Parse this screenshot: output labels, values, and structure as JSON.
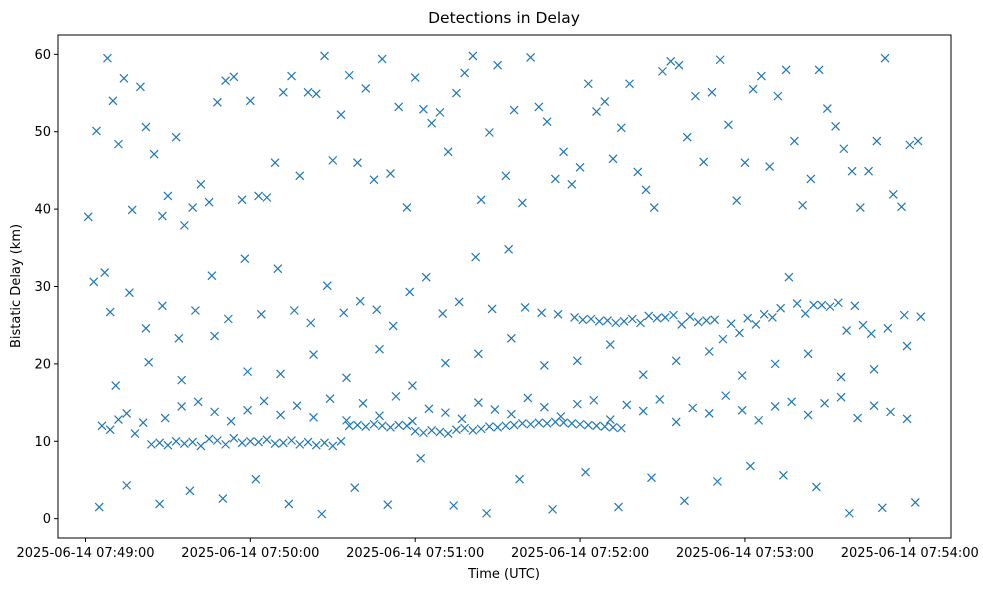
{
  "chart_data": {
    "type": "scatter",
    "title": "Detections in Delay",
    "xlabel": "Time (UTC)",
    "ylabel": "Bistatic Delay (km)",
    "x_axis": "time",
    "xlim": [
      "2025-06-14 07:48:50",
      "2025-06-14 07:54:15"
    ],
    "ylim": [
      -2.5,
      62.5
    ],
    "x_ticks": [
      "2025-06-14 07:49:00",
      "2025-06-14 07:50:00",
      "2025-06-14 07:51:00",
      "2025-06-14 07:52:00",
      "2025-06-14 07:53:00",
      "2025-06-14 07:54:00"
    ],
    "y_ticks": [
      0,
      10,
      20,
      30,
      40,
      50,
      60
    ],
    "grid": false,
    "marker": "x",
    "marker_color": "#1f77b4",
    "series": [
      {
        "x": [
          "2025-06-14 07:49:01",
          "2025-06-14 07:49:04",
          "2025-06-14 07:49:07",
          "2025-06-14 07:49:08",
          "2025-06-14 07:49:10",
          "2025-06-14 07:49:12",
          "2025-06-14 07:49:14",
          "2025-06-14 07:49:17",
          "2025-06-14 07:49:20",
          "2025-06-14 07:49:22",
          "2025-06-14 07:49:25",
          "2025-06-14 07:49:28",
          "2025-06-14 07:49:30",
          "2025-06-14 07:49:33",
          "2025-06-14 07:49:36",
          "2025-06-14 07:49:39",
          "2025-06-14 07:49:42",
          "2025-06-14 07:49:45",
          "2025-06-14 07:49:48",
          "2025-06-14 07:49:51",
          "2025-06-14 07:49:54",
          "2025-06-14 07:49:57",
          "2025-06-14 07:50:00",
          "2025-06-14 07:50:03",
          "2025-06-14 07:50:06",
          "2025-06-14 07:50:09",
          "2025-06-14 07:50:12",
          "2025-06-14 07:50:15",
          "2025-06-14 07:50:18",
          "2025-06-14 07:50:21",
          "2025-06-14 07:50:24",
          "2025-06-14 07:50:27",
          "2025-06-14 07:50:30",
          "2025-06-14 07:50:33",
          "2025-06-14 07:50:36",
          "2025-06-14 07:50:39",
          "2025-06-14 07:50:42",
          "2025-06-14 07:50:45",
          "2025-06-14 07:50:48",
          "2025-06-14 07:50:51",
          "2025-06-14 07:50:54",
          "2025-06-14 07:50:57",
          "2025-06-14 07:51:00",
          "2025-06-14 07:51:03",
          "2025-06-14 07:51:06",
          "2025-06-14 07:51:09",
          "2025-06-14 07:51:12",
          "2025-06-14 07:51:15",
          "2025-06-14 07:51:18",
          "2025-06-14 07:51:21",
          "2025-06-14 07:51:24",
          "2025-06-14 07:51:27",
          "2025-06-14 07:51:30",
          "2025-06-14 07:51:33",
          "2025-06-14 07:51:36",
          "2025-06-14 07:51:39",
          "2025-06-14 07:51:42",
          "2025-06-14 07:51:45",
          "2025-06-14 07:51:48",
          "2025-06-14 07:51:51",
          "2025-06-14 07:51:54",
          "2025-06-14 07:51:57",
          "2025-06-14 07:52:00",
          "2025-06-14 07:52:03",
          "2025-06-14 07:52:06",
          "2025-06-14 07:52:09",
          "2025-06-14 07:52:12",
          "2025-06-14 07:52:15",
          "2025-06-14 07:52:18",
          "2025-06-14 07:52:21",
          "2025-06-14 07:52:24",
          "2025-06-14 07:52:27",
          "2025-06-14 07:52:30",
          "2025-06-14 07:52:33",
          "2025-06-14 07:52:36",
          "2025-06-14 07:52:39",
          "2025-06-14 07:52:42",
          "2025-06-14 07:52:45",
          "2025-06-14 07:52:48",
          "2025-06-14 07:52:51",
          "2025-06-14 07:52:54",
          "2025-06-14 07:52:57",
          "2025-06-14 07:53:00",
          "2025-06-14 07:53:03",
          "2025-06-14 07:53:06",
          "2025-06-14 07:53:09",
          "2025-06-14 07:53:12",
          "2025-06-14 07:53:15",
          "2025-06-14 07:53:18",
          "2025-06-14 07:53:21",
          "2025-06-14 07:53:24",
          "2025-06-14 07:53:27",
          "2025-06-14 07:53:30",
          "2025-06-14 07:53:33",
          "2025-06-14 07:53:36",
          "2025-06-14 07:53:39",
          "2025-06-14 07:53:42",
          "2025-06-14 07:53:45",
          "2025-06-14 07:53:48",
          "2025-06-14 07:53:51",
          "2025-06-14 07:53:54",
          "2025-06-14 07:53:57",
          "2025-06-14 07:54:00",
          "2025-06-14 07:54:03",
          "2025-06-14 07:49:05",
          "2025-06-14 07:49:15",
          "2025-06-14 07:49:27",
          "2025-06-14 07:49:38",
          "2025-06-14 07:49:50",
          "2025-06-14 07:50:02",
          "2025-06-14 07:50:14",
          "2025-06-14 07:50:26",
          "2025-06-14 07:50:38",
          "2025-06-14 07:50:50",
          "2025-06-14 07:51:02",
          "2025-06-14 07:51:14",
          "2025-06-14 07:51:26",
          "2025-06-14 07:51:38",
          "2025-06-14 07:51:50",
          "2025-06-14 07:52:02",
          "2025-06-14 07:52:14",
          "2025-06-14 07:52:26",
          "2025-06-14 07:52:38",
          "2025-06-14 07:52:50",
          "2025-06-14 07:53:02",
          "2025-06-14 07:53:14",
          "2025-06-14 07:53:26",
          "2025-06-14 07:53:38",
          "2025-06-14 07:53:50",
          "2025-06-14 07:54:02",
          "2025-06-14 07:49:11",
          "2025-06-14 07:49:23",
          "2025-06-14 07:49:35",
          "2025-06-14 07:49:47",
          "2025-06-14 07:49:59",
          "2025-06-14 07:50:11",
          "2025-06-14 07:50:23",
          "2025-06-14 07:50:35",
          "2025-06-14 07:50:47",
          "2025-06-14 07:50:59",
          "2025-06-14 07:51:11",
          "2025-06-14 07:51:23",
          "2025-06-14 07:51:35",
          "2025-06-14 07:51:47",
          "2025-06-14 07:51:59",
          "2025-06-14 07:52:11",
          "2025-06-14 07:52:23",
          "2025-06-14 07:52:35",
          "2025-06-14 07:52:47",
          "2025-06-14 07:52:59",
          "2025-06-14 07:53:11",
          "2025-06-14 07:53:23",
          "2025-06-14 07:53:35",
          "2025-06-14 07:53:47",
          "2025-06-14 07:53:59"
        ],
        "y": [
          39.0,
          50.1,
          31.8,
          59.5,
          54.0,
          48.4,
          56.9,
          39.9,
          55.8,
          50.6,
          47.1,
          39.1,
          41.7,
          49.3,
          37.9,
          40.2,
          43.2,
          40.9,
          53.8,
          56.6,
          57.1,
          41.2,
          54.0,
          41.7,
          41.5,
          46.0,
          55.1,
          57.2,
          44.3,
          55.1,
          54.9,
          59.8,
          46.3,
          52.2,
          57.3,
          46.0,
          55.6,
          43.8,
          59.4,
          44.6,
          53.2,
          40.2,
          57.0,
          52.9,
          51.1,
          52.5,
          47.4,
          55.0,
          57.6,
          59.8,
          41.2,
          49.9,
          58.6,
          44.3,
          52.8,
          40.8,
          59.6,
          53.2,
          51.3,
          43.9,
          47.4,
          43.2,
          45.4,
          56.2,
          52.6,
          53.9,
          46.5,
          50.5,
          56.2,
          44.8,
          42.5,
          40.2,
          57.8,
          59.1,
          58.6,
          49.3,
          54.6,
          46.1,
          55.1,
          59.3,
          50.9,
          41.1,
          46.0,
          55.5,
          57.2,
          45.5,
          54.6,
          58.0,
          48.8,
          40.5,
          43.9,
          58.0,
          53.0,
          50.7,
          47.8,
          44.9,
          40.2,
          44.9,
          48.8,
          59.5,
          41.9,
          40.3,
          48.3,
          48.8,
          1.5,
          4.3,
          1.9,
          3.6,
          2.6,
          5.1,
          1.9,
          0.6,
          4.0,
          1.8,
          7.8,
          1.7,
          0.7,
          5.1,
          1.2,
          6.0,
          1.5,
          5.3,
          2.3,
          4.8,
          6.8,
          5.6,
          4.1,
          0.7,
          1.4,
          2.1,
          17.2,
          20.2,
          17.9,
          23.6,
          19.0,
          18.7,
          21.2,
          18.2,
          21.9,
          17.2,
          20.1,
          21.3,
          23.3,
          19.8,
          20.4,
          22.5,
          18.6,
          20.4,
          21.6,
          18.5,
          20.0,
          21.3,
          18.3,
          19.3,
          22.3
        ]
      },
      {
        "x": [
          "2025-06-14 07:49:24",
          "2025-06-14 07:49:27",
          "2025-06-14 07:49:30",
          "2025-06-14 07:49:33",
          "2025-06-14 07:49:36",
          "2025-06-14 07:49:39",
          "2025-06-14 07:49:42",
          "2025-06-14 07:49:45",
          "2025-06-14 07:49:48",
          "2025-06-14 07:49:51",
          "2025-06-14 07:49:54",
          "2025-06-14 07:49:57",
          "2025-06-14 07:50:00",
          "2025-06-14 07:50:03",
          "2025-06-14 07:50:06",
          "2025-06-14 07:50:09",
          "2025-06-14 07:50:12",
          "2025-06-14 07:50:15",
          "2025-06-14 07:50:18",
          "2025-06-14 07:50:21",
          "2025-06-14 07:50:24",
          "2025-06-14 07:50:27",
          "2025-06-14 07:50:30",
          "2025-06-14 07:50:33",
          "2025-06-14 07:50:36",
          "2025-06-14 07:50:39",
          "2025-06-14 07:50:42",
          "2025-06-14 07:50:45",
          "2025-06-14 07:50:48",
          "2025-06-14 07:50:51",
          "2025-06-14 07:50:54",
          "2025-06-14 07:50:57",
          "2025-06-14 07:51:00",
          "2025-06-14 07:51:03",
          "2025-06-14 07:51:06",
          "2025-06-14 07:51:09",
          "2025-06-14 07:51:12",
          "2025-06-14 07:51:15",
          "2025-06-14 07:51:18",
          "2025-06-14 07:51:21",
          "2025-06-14 07:51:24",
          "2025-06-14 07:51:27",
          "2025-06-14 07:51:30",
          "2025-06-14 07:51:33",
          "2025-06-14 07:51:36",
          "2025-06-14 07:51:39",
          "2025-06-14 07:51:42",
          "2025-06-14 07:51:45",
          "2025-06-14 07:51:48",
          "2025-06-14 07:51:51",
          "2025-06-14 07:51:54",
          "2025-06-14 07:51:57",
          "2025-06-14 07:52:00",
          "2025-06-14 07:52:03",
          "2025-06-14 07:52:06",
          "2025-06-14 07:52:09",
          "2025-06-14 07:52:12",
          "2025-06-14 07:52:15",
          "2025-06-14 07:49:06",
          "2025-06-14 07:49:09",
          "2025-06-14 07:49:12",
          "2025-06-14 07:49:15",
          "2025-06-14 07:49:18",
          "2025-06-14 07:49:21",
          "2025-06-14 07:49:29",
          "2025-06-14 07:49:35",
          "2025-06-14 07:49:41",
          "2025-06-14 07:49:47",
          "2025-06-14 07:49:53",
          "2025-06-14 07:49:59",
          "2025-06-14 07:50:05",
          "2025-06-14 07:50:11",
          "2025-06-14 07:50:17",
          "2025-06-14 07:50:23",
          "2025-06-14 07:50:29",
          "2025-06-14 07:50:35",
          "2025-06-14 07:50:41",
          "2025-06-14 07:50:47",
          "2025-06-14 07:50:53",
          "2025-06-14 07:50:59",
          "2025-06-14 07:51:05",
          "2025-06-14 07:51:11",
          "2025-06-14 07:51:17",
          "2025-06-14 07:51:23",
          "2025-06-14 07:51:29",
          "2025-06-14 07:51:35",
          "2025-06-14 07:51:41",
          "2025-06-14 07:51:47",
          "2025-06-14 07:51:53",
          "2025-06-14 07:51:59",
          "2025-06-14 07:52:05",
          "2025-06-14 07:52:11",
          "2025-06-14 07:52:17",
          "2025-06-14 07:52:23",
          "2025-06-14 07:52:29",
          "2025-06-14 07:52:35",
          "2025-06-14 07:52:41",
          "2025-06-14 07:52:47",
          "2025-06-14 07:52:53",
          "2025-06-14 07:52:59",
          "2025-06-14 07:53:05",
          "2025-06-14 07:53:11",
          "2025-06-14 07:53:17",
          "2025-06-14 07:53:23",
          "2025-06-14 07:53:29",
          "2025-06-14 07:53:35",
          "2025-06-14 07:53:41",
          "2025-06-14 07:53:47",
          "2025-06-14 07:53:53",
          "2025-06-14 07:53:59"
        ],
        "y": [
          9.6,
          9.8,
          9.5,
          10.0,
          9.7,
          9.9,
          9.4,
          10.3,
          10.1,
          9.6,
          10.4,
          9.8,
          10.0,
          9.9,
          10.2,
          9.7,
          9.8,
          10.1,
          9.6,
          9.9,
          9.5,
          9.8,
          9.4,
          10.0,
          12.0,
          12.1,
          11.9,
          12.2,
          12.0,
          11.8,
          12.1,
          12.0,
          11.3,
          11.1,
          11.4,
          11.2,
          11.0,
          11.5,
          11.7,
          11.4,
          11.6,
          11.9,
          11.8,
          12.0,
          12.1,
          12.3,
          12.2,
          12.4,
          12.3,
          12.5,
          12.4,
          12.3,
          12.2,
          12.1,
          12.0,
          11.9,
          11.8,
          11.7,
          12.0,
          11.5,
          12.8,
          13.6,
          11.0,
          12.4,
          13.0,
          14.5,
          15.1,
          13.8,
          12.6,
          14.0,
          15.2,
          13.4,
          14.6,
          13.1,
          15.5,
          12.7,
          14.9,
          13.3,
          15.8,
          12.6,
          14.2,
          13.7,
          12.9,
          15.0,
          14.1,
          13.5,
          15.6,
          14.4,
          13.2,
          14.8,
          15.3,
          12.8,
          14.7,
          13.9,
          15.4,
          12.5,
          14.3,
          13.6,
          15.9,
          14.0,
          12.7,
          14.5,
          15.1,
          13.4,
          14.9,
          15.7,
          13.0,
          14.6,
          13.8,
          12.9
        ]
      },
      {
        "x": [
          "2025-06-14 07:49:03",
          "2025-06-14 07:49:09",
          "2025-06-14 07:49:16",
          "2025-06-14 07:49:22",
          "2025-06-14 07:49:28",
          "2025-06-14 07:49:34",
          "2025-06-14 07:49:40",
          "2025-06-14 07:49:46",
          "2025-06-14 07:49:52",
          "2025-06-14 07:49:58",
          "2025-06-14 07:50:04",
          "2025-06-14 07:50:10",
          "2025-06-14 07:50:16",
          "2025-06-14 07:50:22",
          "2025-06-14 07:50:28",
          "2025-06-14 07:50:34",
          "2025-06-14 07:50:40",
          "2025-06-14 07:50:46",
          "2025-06-14 07:50:52",
          "2025-06-14 07:50:58",
          "2025-06-14 07:51:04",
          "2025-06-14 07:51:10",
          "2025-06-14 07:51:16",
          "2025-06-14 07:51:22",
          "2025-06-14 07:51:28",
          "2025-06-14 07:51:34",
          "2025-06-14 07:51:40",
          "2025-06-14 07:51:46",
          "2025-06-14 07:51:52",
          "2025-06-14 07:51:58",
          "2025-06-14 07:52:04",
          "2025-06-14 07:52:10",
          "2025-06-14 07:52:16",
          "2025-06-14 07:52:22",
          "2025-06-14 07:52:28",
          "2025-06-14 07:52:34",
          "2025-06-14 07:52:40",
          "2025-06-14 07:52:46",
          "2025-06-14 07:52:52",
          "2025-06-14 07:52:58",
          "2025-06-14 07:53:04",
          "2025-06-14 07:53:10",
          "2025-06-14 07:53:16",
          "2025-06-14 07:53:22",
          "2025-06-14 07:53:28",
          "2025-06-14 07:53:34",
          "2025-06-14 07:53:40",
          "2025-06-14 07:53:46",
          "2025-06-14 07:53:52",
          "2025-06-14 07:53:58",
          "2025-06-14 07:54:04",
          "2025-06-14 07:52:01",
          "2025-06-14 07:52:07",
          "2025-06-14 07:52:13",
          "2025-06-14 07:52:19",
          "2025-06-14 07:52:25",
          "2025-06-14 07:52:31",
          "2025-06-14 07:52:37",
          "2025-06-14 07:52:43",
          "2025-06-14 07:52:49",
          "2025-06-14 07:52:55",
          "2025-06-14 07:53:01",
          "2025-06-14 07:53:07",
          "2025-06-14 07:53:13",
          "2025-06-14 07:53:19",
          "2025-06-14 07:53:25",
          "2025-06-14 07:53:31",
          "2025-06-14 07:53:37",
          "2025-06-14 07:53:43"
        ],
        "y": [
          30.6,
          26.7,
          29.2,
          24.6,
          27.5,
          23.3,
          26.9,
          31.4,
          25.8,
          33.6,
          26.4,
          32.3,
          26.9,
          25.3,
          30.1,
          26.6,
          28.1,
          27.0,
          24.9,
          29.3,
          31.2,
          26.5,
          28.0,
          33.8,
          27.1,
          34.8,
          27.3,
          26.6,
          26.4,
          26.0,
          25.8,
          25.6,
          25.5,
          25.3,
          25.9,
          26.3,
          26.1,
          25.6,
          23.2,
          24.0,
          25.1,
          26.0,
          31.2,
          26.5,
          27.6,
          27.9,
          27.5,
          23.9,
          24.6,
          26.3,
          26.1,
          25.7,
          25.5,
          25.3,
          25.8,
          26.2,
          26.0,
          25.1,
          25.4,
          25.7,
          25.2,
          25.9,
          26.4,
          27.2,
          27.8,
          27.6,
          27.4,
          24.3,
          25.0
        ]
      }
    ]
  }
}
